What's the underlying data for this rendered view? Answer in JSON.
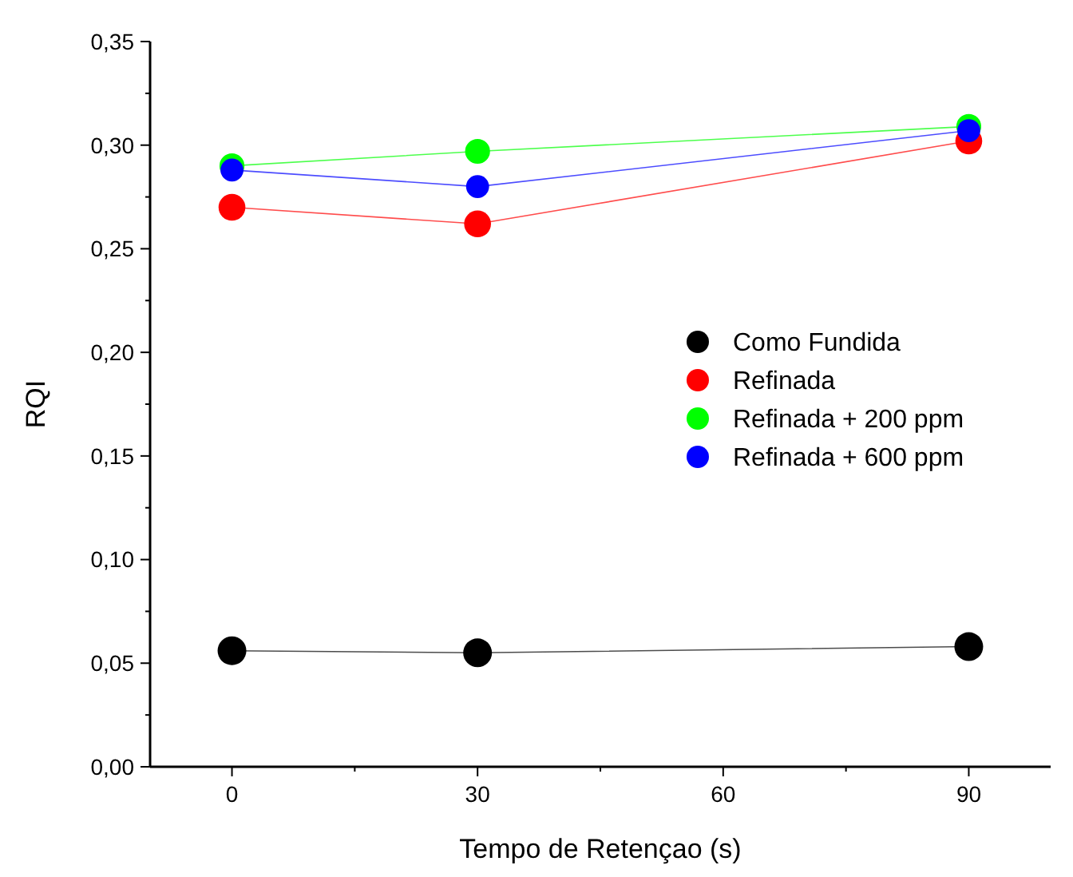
{
  "chart_data": {
    "type": "line",
    "xlabel": "Tempo de Retençao (s)",
    "ylabel": "RQI",
    "x": [
      0,
      30,
      90
    ],
    "series": [
      {
        "name": "Como Fundida",
        "color": "#000000",
        "values": [
          0.056,
          0.055,
          0.058
        ]
      },
      {
        "name": "Refinada",
        "color": "#ff0000",
        "values": [
          0.27,
          0.262,
          0.302
        ]
      },
      {
        "name": "Refinada + 200 ppm",
        "color": "#00ff00",
        "values": [
          0.29,
          0.297,
          0.309
        ]
      },
      {
        "name": "Refinada + 600 ppm",
        "color": "#0000ff",
        "values": [
          0.288,
          0.28,
          0.307
        ]
      }
    ],
    "xlim": [
      -10,
      100
    ],
    "xticks": [
      0,
      {
        "value": 15,
        "label": null
      },
      30,
      {
        "value": 45,
        "label": null
      },
      60,
      {
        "value": 75,
        "label": null
      },
      90
    ],
    "ylim": [
      0,
      0.35
    ],
    "yticks": [
      {
        "value": 0,
        "label": "0,00"
      },
      {
        "value": 0.025,
        "label": null
      },
      {
        "value": 0.05,
        "label": "0,05"
      },
      {
        "value": 0.075,
        "label": null
      },
      {
        "value": 0.1,
        "label": "0,10"
      },
      {
        "value": 0.125,
        "label": null
      },
      {
        "value": 0.15,
        "label": "0,15"
      },
      {
        "value": 0.175,
        "label": null
      },
      {
        "value": 0.2,
        "label": "0,20"
      },
      {
        "value": 0.225,
        "label": null
      },
      {
        "value": 0.25,
        "label": "0,25"
      },
      {
        "value": 0.275,
        "label": null
      },
      {
        "value": 0.3,
        "label": "0,30"
      },
      {
        "value": 0.325,
        "label": null
      },
      {
        "value": 0.35,
        "label": "0,35"
      }
    ],
    "grid": false,
    "legend": "right",
    "marker": "circle",
    "line_style": "solid"
  }
}
